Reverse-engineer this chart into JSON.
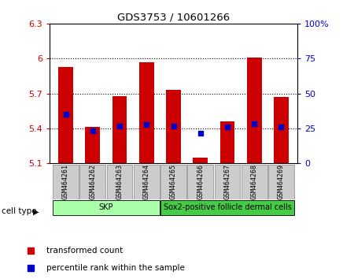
{
  "title": "GDS3753 / 10601266",
  "samples": [
    "GSM464261",
    "GSM464262",
    "GSM464263",
    "GSM464264",
    "GSM464265",
    "GSM464266",
    "GSM464267",
    "GSM464268",
    "GSM464269"
  ],
  "bar_bottoms": [
    5.1,
    5.1,
    5.1,
    5.1,
    5.1,
    5.1,
    5.1,
    5.1,
    5.1
  ],
  "bar_tops": [
    5.93,
    5.41,
    5.68,
    5.97,
    5.73,
    5.15,
    5.46,
    6.01,
    5.67
  ],
  "percentile_values": [
    5.52,
    5.38,
    5.42,
    5.43,
    5.42,
    5.36,
    5.41,
    5.44,
    5.41
  ],
  "ylim_left": [
    5.1,
    6.3
  ],
  "ylim_right": [
    0,
    100
  ],
  "yticks_left": [
    5.1,
    5.4,
    5.7,
    6.0,
    6.3
  ],
  "yticks_right": [
    0,
    25,
    50,
    75,
    100
  ],
  "ytick_labels_left": [
    "5.1",
    "5.4",
    "5.7",
    "6",
    "6.3"
  ],
  "ytick_labels_right": [
    "0",
    "25",
    "50",
    "75",
    "100%"
  ],
  "bar_color": "#cc0000",
  "dot_color": "#0000cc",
  "cell_type_groups": [
    {
      "label": "SKP",
      "start": 0,
      "end": 4,
      "color": "#aaffaa"
    },
    {
      "label": "Sox2-positive follicle dermal cells",
      "start": 4,
      "end": 9,
      "color": "#44cc44"
    }
  ],
  "cell_type_label": "cell type",
  "legend_bar_label": "transformed count",
  "legend_dot_label": "percentile rank within the sample",
  "grid_lines": [
    5.4,
    5.7,
    6.0
  ],
  "bg_color": "#ffffff",
  "plot_bg_color": "#ffffff",
  "tick_label_color_left": "#cc0000",
  "tick_label_color_right": "#0000cc",
  "box_color": "#cccccc",
  "figsize": [
    4.5,
    3.54
  ],
  "dpi": 100
}
